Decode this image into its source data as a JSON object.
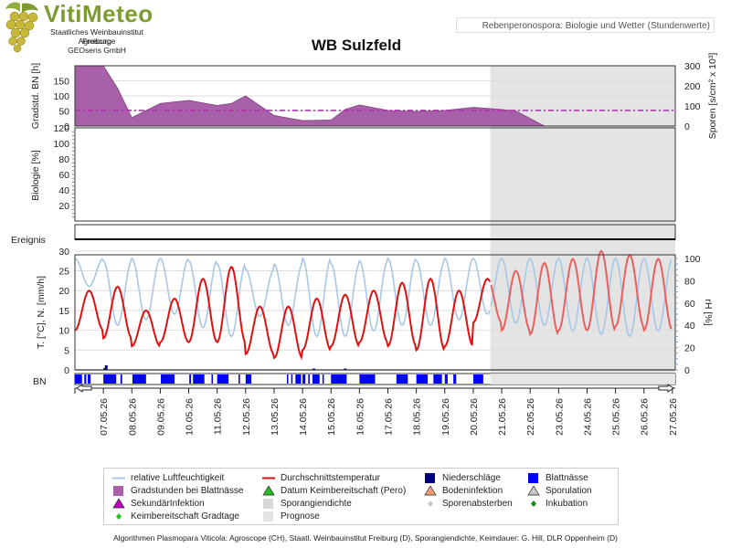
{
  "header": {
    "brand": "VitiMeteo",
    "lines": [
      "Staatliches Weinbauinstitut Freiburg",
      "Agroscope",
      "GEOsens GmbH"
    ],
    "badge": "Rebenperonospora: Biologie und Wetter (Stundenwerte)",
    "title": "WB Sulzfeld"
  },
  "footer": "Algorithmen Plasmopara Viticola: Agroscope (CH), Staatl. Weinbauinstitut Freiburg (D), Sporangiendichte, Keimdauer: G. Hill, DLR Oppenheim (D)",
  "colors": {
    "humidity": "#a8c8e8",
    "temp": "#e01010",
    "temp_forecast": "#e86060",
    "degree_hours": "#a860a8",
    "threshold": "#b030b0",
    "leaf_wetness": "#0000ff",
    "precip": "#000080",
    "forecast_bg": "#e4e4e4"
  },
  "chart_data": [
    {
      "type": "area",
      "panel": "gradstunden",
      "ylabel": "Gradstd. BN [h]",
      "y2label": "Sporen [s/cm² x 10³]",
      "ylim": [
        0,
        200
      ],
      "yticks": [
        0,
        50,
        100,
        150
      ],
      "y2ticks": [
        0,
        100,
        200,
        300
      ],
      "x": [
        0,
        1,
        1.5,
        2,
        3,
        4,
        5,
        5.5,
        6,
        7,
        8,
        9,
        9.5,
        10,
        11,
        12,
        13,
        14,
        15,
        15.5,
        16,
        16.5
      ],
      "values": [
        200,
        200,
        125,
        28,
        75,
        85,
        68,
        75,
        100,
        35,
        18,
        20,
        55,
        70,
        52,
        48,
        52,
        62,
        55,
        50,
        25,
        0
      ],
      "threshold": 52
    },
    {
      "type": "line",
      "panel": "biologie",
      "ylabel": "Biologie [%]",
      "ylim": [
        0,
        120
      ],
      "yticks": [
        20,
        40,
        60,
        80,
        100,
        120
      ]
    },
    {
      "type": "line",
      "panel": "ereignis",
      "ylabel": "Ereignis"
    },
    {
      "type": "line",
      "panel": "wetter",
      "ylabel": "T. [°C], N. [mm/h]",
      "y2label": "rH [%]",
      "ylim": [
        0,
        30
      ],
      "yticks": [
        0,
        5,
        10,
        15,
        20,
        25,
        30
      ],
      "y2ticks": [
        0,
        20,
        40,
        60,
        80,
        100
      ],
      "xlabel": "",
      "dates": [
        "07.05.26",
        "08.05.26",
        "09.05.26",
        "10.05.26",
        "11.05.26",
        "12.05.26",
        "13.05.26",
        "14.05.26",
        "15.05.26",
        "16.05.26",
        "17.05.26",
        "18.05.26",
        "19.05.26",
        "20.05.26",
        "21.05.26",
        "22.05.26",
        "23.05.26",
        "24.05.26",
        "25.05.26",
        "26.05.26",
        "27.05.26"
      ],
      "forecast_start_day": 14.6,
      "temp_min": [
        10,
        8,
        6,
        7,
        7,
        7,
        4,
        3,
        5,
        6,
        7,
        6,
        5,
        6,
        12,
        10,
        9,
        10,
        10,
        11,
        10
      ],
      "temp_max": [
        20,
        21,
        15,
        18,
        23,
        26,
        16,
        16,
        18,
        19,
        20,
        22,
        23,
        20,
        23,
        25,
        27,
        28,
        30,
        29,
        28
      ],
      "rh_min": [
        75,
        40,
        45,
        50,
        38,
        30,
        48,
        40,
        30,
        30,
        35,
        40,
        40,
        45,
        50,
        42,
        40,
        35,
        32,
        30,
        35
      ],
      "rh_max": [
        100,
        98,
        100,
        100,
        98,
        95,
        90,
        95,
        100,
        95,
        98,
        100,
        98,
        100,
        100,
        100,
        100,
        100,
        100,
        100,
        100
      ],
      "precip": [
        {
          "day": 1.1,
          "value": 2.0
        },
        {
          "day": 1.05,
          "value": 0.8
        },
        {
          "day": 8.4,
          "value": 0.5
        },
        {
          "day": 9.5,
          "value": 0.4
        }
      ],
      "leaf_wetness": [
        [
          0.0,
          0.25
        ],
        [
          0.33,
          0.4
        ],
        [
          0.45,
          0.55
        ],
        [
          1.0,
          1.45
        ],
        [
          1.6,
          1.66
        ],
        [
          2.02,
          2.5
        ],
        [
          3.02,
          3.5
        ],
        [
          4.02,
          4.08
        ],
        [
          4.15,
          4.55
        ],
        [
          4.8,
          4.85
        ],
        [
          5.0,
          5.4
        ],
        [
          5.75,
          5.8
        ],
        [
          6.0,
          6.2
        ],
        [
          7.45,
          7.5
        ],
        [
          7.6,
          7.65
        ],
        [
          7.75,
          7.95
        ],
        [
          8.0,
          8.1
        ],
        [
          8.2,
          8.25
        ],
        [
          8.35,
          8.6
        ],
        [
          8.7,
          8.75
        ],
        [
          9.0,
          9.55
        ],
        [
          10.0,
          10.55
        ],
        [
          11.3,
          11.7
        ],
        [
          12.0,
          12.4
        ],
        [
          12.6,
          12.9
        ],
        [
          13.0,
          13.1
        ],
        [
          13.3,
          13.4
        ],
        [
          14.0,
          14.35
        ]
      ],
      "leaf_label": "BN"
    }
  ],
  "legend": [
    {
      "label": "relative Luftfeuchtigkeit",
      "symbol": "line",
      "color": "#a8c8e8"
    },
    {
      "label": "Gradstunden bei Blattnässe",
      "symbol": "square",
      "color": "#a860a8"
    },
    {
      "label": "SekundärInfektion",
      "symbol": "triangle",
      "color": "#c000c0"
    },
    {
      "label": "Keimbereitschaft Gradtage",
      "symbol": "diamond",
      "color": "#20c020"
    },
    {
      "label": "Durchschnittstemperatur",
      "symbol": "line",
      "color": "#e01010"
    },
    {
      "label": "Datum Keimbereitschaft (Pero)",
      "symbol": "triangle",
      "color": "#20c020"
    },
    {
      "label": "Sporangiendichte",
      "symbol": "square",
      "color": "#d8d8d8"
    },
    {
      "label": "Prognose",
      "symbol": "square",
      "color": "#e4e4e4"
    },
    {
      "label": "Niederschläge",
      "symbol": "square",
      "color": "#000080"
    },
    {
      "label": "Bodeninfektion",
      "symbol": "triangle",
      "color": "#f0a070"
    },
    {
      "label": "Sporenabsterben",
      "symbol": "diamond",
      "color": "#c8c8c8"
    },
    {
      "label": "Blattnässe",
      "symbol": "square",
      "color": "#0000ff"
    },
    {
      "label": "Sporulation",
      "symbol": "triangle",
      "color": "#c8c8c8"
    },
    {
      "label": "Inkubation",
      "symbol": "diamond",
      "color": "#109010"
    }
  ]
}
